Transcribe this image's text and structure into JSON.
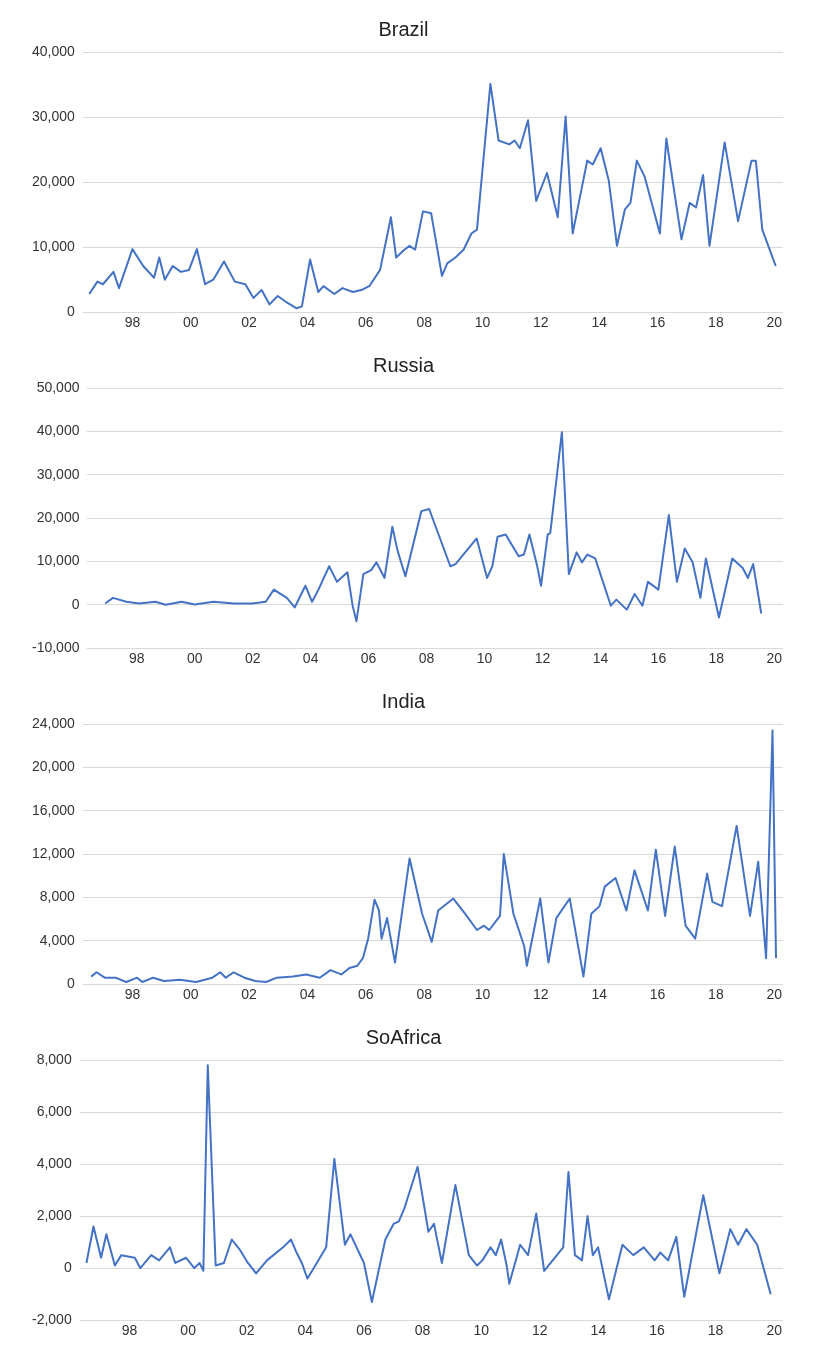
{
  "chart_data": [
    {
      "type": "line",
      "title": "Brazil",
      "color": "#4472c4",
      "grid": "y",
      "x": [
        1996.52,
        1996.8,
        1996.99,
        1997.35,
        1997.54,
        1998.0,
        1998.37,
        1998.74,
        1998.92,
        1999.11,
        1999.38,
        1999.66,
        1999.94,
        2000.21,
        2000.49,
        2000.77,
        2001.14,
        2001.51,
        2001.87,
        2002.15,
        2002.43,
        2002.7,
        2002.98,
        2003.26,
        2003.63,
        2003.81,
        2004.09,
        2004.37,
        2004.55,
        2004.92,
        2005.2,
        2005.56,
        2005.84,
        2006.12,
        2006.49,
        2006.86,
        2007.04,
        2007.32,
        2007.5,
        2007.69,
        2007.96,
        2008.24,
        2008.61,
        2008.79,
        2009.07,
        2009.35,
        2009.62,
        2009.81,
        2010.27,
        2010.55,
        2010.92,
        2011.1,
        2011.28,
        2011.56,
        2011.84,
        2012.21,
        2012.58,
        2012.85,
        2013.09,
        2013.59,
        2013.78,
        2014.05,
        2014.33,
        2014.61,
        2014.88,
        2015.07,
        2015.29,
        2015.56,
        2016.08,
        2016.3,
        2016.82,
        2017.1,
        2017.32,
        2017.56,
        2017.78,
        2018.3,
        2018.76,
        2019.22,
        2019.37,
        2019.59,
        2020.05
      ],
      "values": [
        2800,
        4700,
        4300,
        6200,
        3700,
        9700,
        7100,
        5300,
        8400,
        5000,
        7100,
        6200,
        6500,
        9700,
        4300,
        5000,
        7800,
        4700,
        4300,
        2200,
        3400,
        1200,
        2500,
        1600,
        600,
        900,
        8100,
        3100,
        4000,
        2800,
        3700,
        3100,
        3400,
        4000,
        6500,
        14600,
        8400,
        9600,
        10200,
        9600,
        15500,
        15200,
        5600,
        7500,
        8400,
        9600,
        12100,
        12700,
        35100,
        26400,
        25800,
        26400,
        25200,
        29500,
        17100,
        21400,
        14600,
        30100,
        12100,
        23300,
        22700,
        25200,
        20200,
        10200,
        15800,
        16800,
        23300,
        20800,
        12100,
        26700,
        11200,
        16800,
        16100,
        21100,
        10200,
        26100,
        14000,
        23300,
        23300,
        12700,
        7100
      ],
      "xlim": [
        1996.3,
        2020.3
      ],
      "xticks": [
        {
          "value": 1998,
          "label": "98"
        },
        {
          "value": 2000,
          "label": "00"
        },
        {
          "value": 2002,
          "label": "02"
        },
        {
          "value": 2004,
          "label": "04"
        },
        {
          "value": 2006,
          "label": "06"
        },
        {
          "value": 2008,
          "label": "08"
        },
        {
          "value": 2010,
          "label": "10"
        },
        {
          "value": 2012,
          "label": "12"
        },
        {
          "value": 2014,
          "label": "14"
        },
        {
          "value": 2016,
          "label": "16"
        },
        {
          "value": 2018,
          "label": "18"
        },
        {
          "value": 2020,
          "label": "20"
        }
      ],
      "ylim": [
        0,
        40000
      ],
      "yticks": [
        {
          "value": 0,
          "label": "0"
        },
        {
          "value": 10000,
          "label": "10,000"
        },
        {
          "value": 20000,
          "label": "20,000"
        },
        {
          "value": 30000,
          "label": "30,000"
        },
        {
          "value": 40000,
          "label": "40,000"
        }
      ]
    },
    {
      "type": "line",
      "title": "Russia",
      "color": "#4472c4",
      "grid": "y",
      "x": [
        1996.91,
        1997.18,
        1997.64,
        1998.09,
        1998.64,
        1999.0,
        1999.55,
        2000.0,
        2000.64,
        2001.36,
        2002.0,
        2002.45,
        2002.73,
        2003.18,
        2003.45,
        2003.82,
        2004.05,
        2004.27,
        2004.64,
        2004.91,
        2005.27,
        2005.45,
        2005.58,
        2005.82,
        2006.09,
        2006.27,
        2006.55,
        2006.82,
        2007.0,
        2007.27,
        2007.82,
        2008.09,
        2008.82,
        2009.0,
        2009.73,
        2010.09,
        2010.27,
        2010.45,
        2010.73,
        2011.18,
        2011.36,
        2011.55,
        2011.82,
        2011.95,
        2012.18,
        2012.27,
        2012.67,
        2012.91,
        2013.18,
        2013.36,
        2013.55,
        2013.82,
        2014.36,
        2014.55,
        2014.91,
        2015.18,
        2015.45,
        2015.64,
        2016.0,
        2016.36,
        2016.64,
        2016.91,
        2017.18,
        2017.45,
        2017.64,
        2018.09,
        2018.55,
        2018.91,
        2019.09,
        2019.27,
        2019.55
      ],
      "values": [
        300,
        1600,
        700,
        300,
        700,
        0,
        700,
        100,
        700,
        300,
        300,
        700,
        3500,
        1600,
        -600,
        4400,
        700,
        3500,
        8900,
        5300,
        7500,
        -200,
        -3800,
        7100,
        8000,
        9800,
        6200,
        18000,
        12500,
        6600,
        21600,
        22100,
        8900,
        9400,
        15300,
        6200,
        8900,
        15700,
        16200,
        11200,
        11600,
        16200,
        8900,
        4400,
        16200,
        16600,
        39800,
        7100,
        12100,
        9800,
        11600,
        10700,
        -200,
        1200,
        -1100,
        2500,
        -200,
        5300,
        3500,
        20700,
        5300,
        13000,
        9800,
        1600,
        10700,
        -2900,
        10700,
        8500,
        6200,
        9400,
        -2000
      ],
      "xlim": [
        1996.3,
        2020.3
      ],
      "xticks": [
        {
          "value": 1998,
          "label": "98"
        },
        {
          "value": 2000,
          "label": "00"
        },
        {
          "value": 2002,
          "label": "02"
        },
        {
          "value": 2004,
          "label": "04"
        },
        {
          "value": 2006,
          "label": "06"
        },
        {
          "value": 2008,
          "label": "08"
        },
        {
          "value": 2010,
          "label": "10"
        },
        {
          "value": 2012,
          "label": "12"
        },
        {
          "value": 2014,
          "label": "14"
        },
        {
          "value": 2016,
          "label": "16"
        },
        {
          "value": 2018,
          "label": "18"
        },
        {
          "value": 2020,
          "label": "20"
        }
      ],
      "ylim": [
        -10000,
        50000
      ],
      "yticks": [
        {
          "value": -10000,
          "label": "-10,000"
        },
        {
          "value": 0,
          "label": "0"
        },
        {
          "value": 10000,
          "label": "10,000"
        },
        {
          "value": 20000,
          "label": "20,000"
        },
        {
          "value": 30000,
          "label": "30,000"
        },
        {
          "value": 40000,
          "label": "40,000"
        },
        {
          "value": 50000,
          "label": "50,000"
        }
      ]
    },
    {
      "type": "line",
      "title": "India",
      "color": "#4472c4",
      "grid": "y",
      "x": [
        1996.59,
        1996.77,
        1997.05,
        1997.42,
        1997.79,
        1998.16,
        1998.34,
        1998.71,
        1999.08,
        1999.63,
        2000.18,
        2000.74,
        2001.01,
        2001.2,
        2001.47,
        2001.84,
        2002.21,
        2002.58,
        2002.95,
        2003.5,
        2003.96,
        2004.42,
        2004.79,
        2005.16,
        2005.44,
        2005.71,
        2005.9,
        2006.08,
        2006.3,
        2006.45,
        2006.54,
        2006.73,
        2007.0,
        2007.5,
        2007.93,
        2008.26,
        2008.48,
        2009.0,
        2009.4,
        2009.81,
        2010.05,
        2010.23,
        2010.6,
        2010.73,
        2011.06,
        2011.43,
        2011.52,
        2011.98,
        2012.26,
        2012.53,
        2012.99,
        2013.46,
        2013.73,
        2014.01,
        2014.19,
        2014.56,
        2014.93,
        2015.21,
        2015.67,
        2015.94,
        2016.26,
        2016.59,
        2016.96,
        2017.29,
        2017.7,
        2017.88,
        2018.21,
        2018.71,
        2019.17,
        2019.45,
        2019.72,
        2019.94,
        2020.06
      ],
      "values": [
        700,
        1100,
        600,
        600,
        200,
        600,
        200,
        600,
        300,
        400,
        200,
        600,
        1100,
        600,
        1100,
        600,
        300,
        200,
        600,
        700,
        900,
        600,
        1300,
        900,
        1500,
        1700,
        2400,
        4200,
        7800,
        6800,
        4200,
        6100,
        2000,
        11600,
        6500,
        3900,
        6800,
        7900,
        6500,
        5000,
        5400,
        5000,
        6300,
        12000,
        6500,
        3500,
        1700,
        7900,
        2000,
        6100,
        7900,
        700,
        6500,
        7200,
        9000,
        9800,
        6800,
        10500,
        6800,
        12400,
        6300,
        12700,
        5400,
        4200,
        10200,
        7600,
        7200,
        14600,
        6300,
        11300,
        2400,
        23400,
        2400
      ],
      "xlim": [
        1996.3,
        2020.3
      ],
      "xticks": [
        {
          "value": 1998,
          "label": "98"
        },
        {
          "value": 2000,
          "label": "00"
        },
        {
          "value": 2002,
          "label": "02"
        },
        {
          "value": 2004,
          "label": "04"
        },
        {
          "value": 2006,
          "label": "06"
        },
        {
          "value": 2008,
          "label": "08"
        },
        {
          "value": 2010,
          "label": "10"
        },
        {
          "value": 2012,
          "label": "12"
        },
        {
          "value": 2014,
          "label": "14"
        },
        {
          "value": 2016,
          "label": "16"
        },
        {
          "value": 2018,
          "label": "18"
        },
        {
          "value": 2020,
          "label": "20"
        }
      ],
      "ylim": [
        0,
        24000
      ],
      "yticks": [
        {
          "value": 0,
          "label": "0"
        },
        {
          "value": 4000,
          "label": "4,000"
        },
        {
          "value": 8000,
          "label": "8,000"
        },
        {
          "value": 12000,
          "label": "12,000"
        },
        {
          "value": 16000,
          "label": "16,000"
        },
        {
          "value": 20000,
          "label": "20,000"
        },
        {
          "value": 24000,
          "label": "24,000"
        }
      ]
    },
    {
      "type": "line",
      "title": "SoAfrica",
      "color": "#4472c4",
      "grid": "y",
      "x": [
        1996.53,
        1996.77,
        1997.03,
        1997.21,
        1997.5,
        1997.72,
        1998.18,
        1998.37,
        1998.74,
        1999.01,
        1999.38,
        1999.56,
        1999.93,
        2000.21,
        2000.39,
        2000.52,
        2000.67,
        2000.94,
        2001.22,
        2001.49,
        2001.77,
        2002.04,
        2002.32,
        2002.69,
        2003.24,
        2003.51,
        2003.7,
        2003.88,
        2004.07,
        2004.34,
        2004.71,
        2004.99,
        2005.35,
        2005.54,
        2006.0,
        2006.27,
        2006.73,
        2007.01,
        2007.19,
        2007.38,
        2007.83,
        2008.2,
        2008.39,
        2008.66,
        2009.12,
        2009.58,
        2009.86,
        2010.04,
        2010.32,
        2010.5,
        2010.68,
        2010.87,
        2010.96,
        2011.33,
        2011.6,
        2011.88,
        2012.15,
        2012.8,
        2012.98,
        2013.2,
        2013.44,
        2013.63,
        2013.81,
        2013.99,
        2014.36,
        2014.82,
        2015.19,
        2015.55,
        2015.92,
        2016.11,
        2016.38,
        2016.66,
        2016.93,
        2017.58,
        2018.13,
        2018.5,
        2018.77,
        2019.05,
        2019.42,
        2019.88
      ],
      "values": [
        200,
        1600,
        400,
        1300,
        100,
        500,
        400,
        0,
        500,
        300,
        800,
        200,
        400,
        0,
        200,
        -100,
        7800,
        100,
        200,
        1100,
        700,
        200,
        -200,
        300,
        800,
        1100,
        600,
        200,
        -400,
        100,
        800,
        4200,
        900,
        1300,
        200,
        -1300,
        1100,
        1700,
        1800,
        2300,
        3900,
        1400,
        1700,
        200,
        3200,
        500,
        100,
        300,
        800,
        500,
        1100,
        100,
        -600,
        900,
        500,
        2100,
        -100,
        800,
        3700,
        500,
        300,
        2000,
        500,
        800,
        -1200,
        900,
        500,
        800,
        300,
        600,
        300,
        1200,
        -1100,
        2800,
        -200,
        1500,
        900,
        1500,
        900,
        -1000
      ],
      "xlim": [
        1996.3,
        2020.3
      ],
      "xticks": [
        {
          "value": 1998,
          "label": "98"
        },
        {
          "value": 2000,
          "label": "00"
        },
        {
          "value": 2002,
          "label": "02"
        },
        {
          "value": 2004,
          "label": "04"
        },
        {
          "value": 2006,
          "label": "06"
        },
        {
          "value": 2008,
          "label": "08"
        },
        {
          "value": 2010,
          "label": "10"
        },
        {
          "value": 2012,
          "label": "12"
        },
        {
          "value": 2014,
          "label": "14"
        },
        {
          "value": 2016,
          "label": "16"
        },
        {
          "value": 2018,
          "label": "18"
        },
        {
          "value": 2020,
          "label": "20"
        }
      ],
      "ylim": [
        -2000,
        8000
      ],
      "yticks": [
        {
          "value": -2000,
          "label": "-2,000"
        },
        {
          "value": 0,
          "label": "0"
        },
        {
          "value": 2000,
          "label": "2,000"
        },
        {
          "value": 4000,
          "label": "4,000"
        },
        {
          "value": 6000,
          "label": "6,000"
        },
        {
          "value": 8000,
          "label": "8,000"
        }
      ]
    }
  ]
}
